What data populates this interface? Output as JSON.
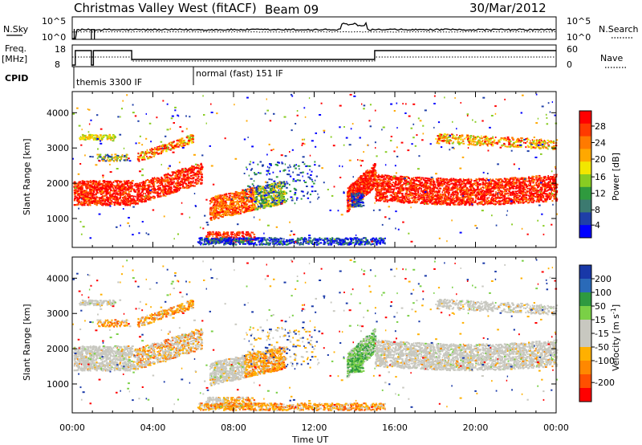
{
  "header": {
    "title": "Christmas Valley West (fitACF)",
    "beam": "Beam 09",
    "date": "30/Mar/2012"
  },
  "sky_panel": {
    "left_label": "N.Sky",
    "left_ticks": [
      "10^5",
      "10^0"
    ],
    "right_label": "N.Search",
    "right_ticks": [
      "10^5",
      "10^0"
    ]
  },
  "freq_panel": {
    "left_label_1": "Freq.",
    "left_label_2": "[MHz]",
    "left_ticks": [
      "18",
      "8"
    ],
    "right_label": "Nave",
    "right_ticks": [
      "60",
      "0"
    ]
  },
  "cpid_panel": {
    "label": "CPID",
    "modes": [
      {
        "name": "themis 3300 IF",
        "start_hour": 0.25
      },
      {
        "name": "normal (fast) 151 IF",
        "start_hour": 6.0
      }
    ]
  },
  "x_axis": {
    "label": "Time UT",
    "tick_labels": [
      "00:00",
      "04:00",
      "08:00",
      "12:00",
      "16:00",
      "20:00",
      "00:00"
    ],
    "range_hours": [
      0,
      24
    ]
  },
  "chart_data": [
    {
      "type": "heatmap",
      "panel": "power",
      "ylabel": "Slant Range [km]",
      "ylim": [
        180,
        4600
      ],
      "y_ticks": [
        "1000",
        "2000",
        "3000",
        "4000"
      ],
      "y_tick_values": [
        1000,
        2000,
        3000,
        4000
      ],
      "colorbar": {
        "label": "Power [dB]",
        "tick_labels": [
          "28",
          "24",
          "20",
          "16",
          "12",
          "8",
          "4"
        ],
        "colors": [
          "#ff0000",
          "#ff3a00",
          "#ff7a00",
          "#ffa800",
          "#f2e600",
          "#88cc22",
          "#2f9a3e",
          "#3c7a70",
          "#1f3fa8",
          "#0000ff"
        ]
      }
    },
    {
      "type": "heatmap",
      "panel": "velocity",
      "ylabel": "Slant Range [km]",
      "ylim": [
        180,
        4600
      ],
      "y_ticks": [
        "1000",
        "2000",
        "3000",
        "4000"
      ],
      "y_tick_values": [
        1000,
        2000,
        3000,
        4000
      ],
      "colorbar": {
        "label": "Velocity [m s",
        "label_sup": "-1",
        "label_end": "]",
        "tick_labels": [
          "200",
          "100",
          "50",
          "15",
          "-15",
          "-50",
          "-100",
          "-200"
        ],
        "colors": [
          "#1838a8",
          "#2a6ab8",
          "#2e9a40",
          "#7ad046",
          "#c8c8c0",
          "#c8c8c0",
          "#ffb000",
          "#ff8800",
          "#ff5000",
          "#ff0000"
        ]
      }
    }
  ]
}
